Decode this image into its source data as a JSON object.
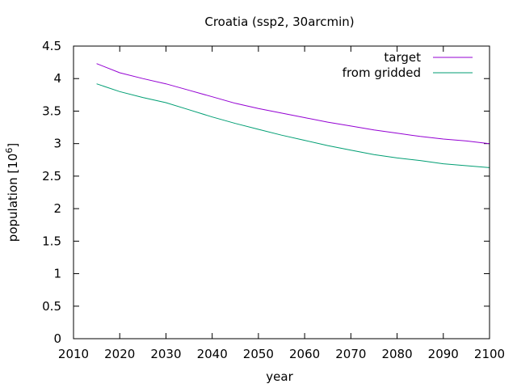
{
  "chart_data": {
    "type": "line",
    "title": "Croatia (ssp2, 30arcmin)",
    "xlabel": "year",
    "ylabel_main": "population [10",
    "ylabel_sup": "6",
    "ylabel_close": "]",
    "xlim": [
      2010,
      2100
    ],
    "ylim": [
      0,
      4.5
    ],
    "xticks": [
      2010,
      2020,
      2030,
      2040,
      2050,
      2060,
      2070,
      2080,
      2090,
      2100
    ],
    "yticks": [
      0,
      0.5,
      1,
      1.5,
      2,
      2.5,
      3,
      3.5,
      4,
      4.5
    ],
    "xtick_labels": [
      "2010",
      "2020",
      "2030",
      "2040",
      "2050",
      "2060",
      "2070",
      "2080",
      "2090",
      "2100"
    ],
    "ytick_labels": [
      "0",
      "0.5",
      "1",
      "1.5",
      "2",
      "2.5",
      "3",
      "3.5",
      "4",
      "4.5"
    ],
    "grid": false,
    "legend_position": "top-right",
    "x": [
      2015,
      2020,
      2025,
      2030,
      2035,
      2040,
      2045,
      2050,
      2055,
      2060,
      2065,
      2070,
      2075,
      2080,
      2085,
      2090,
      2095,
      2100
    ],
    "series": [
      {
        "name": "target",
        "color": "#9400d3",
        "values": [
          4.23,
          4.09,
          4.0,
          3.92,
          3.82,
          3.72,
          3.62,
          3.54,
          3.47,
          3.4,
          3.33,
          3.27,
          3.21,
          3.16,
          3.11,
          3.07,
          3.04,
          3.0
        ]
      },
      {
        "name": "from gridded",
        "color": "#009e73",
        "values": [
          3.92,
          3.8,
          3.71,
          3.63,
          3.52,
          3.41,
          3.31,
          3.22,
          3.13,
          3.05,
          2.97,
          2.9,
          2.83,
          2.78,
          2.74,
          2.69,
          2.66,
          2.63
        ]
      }
    ]
  }
}
